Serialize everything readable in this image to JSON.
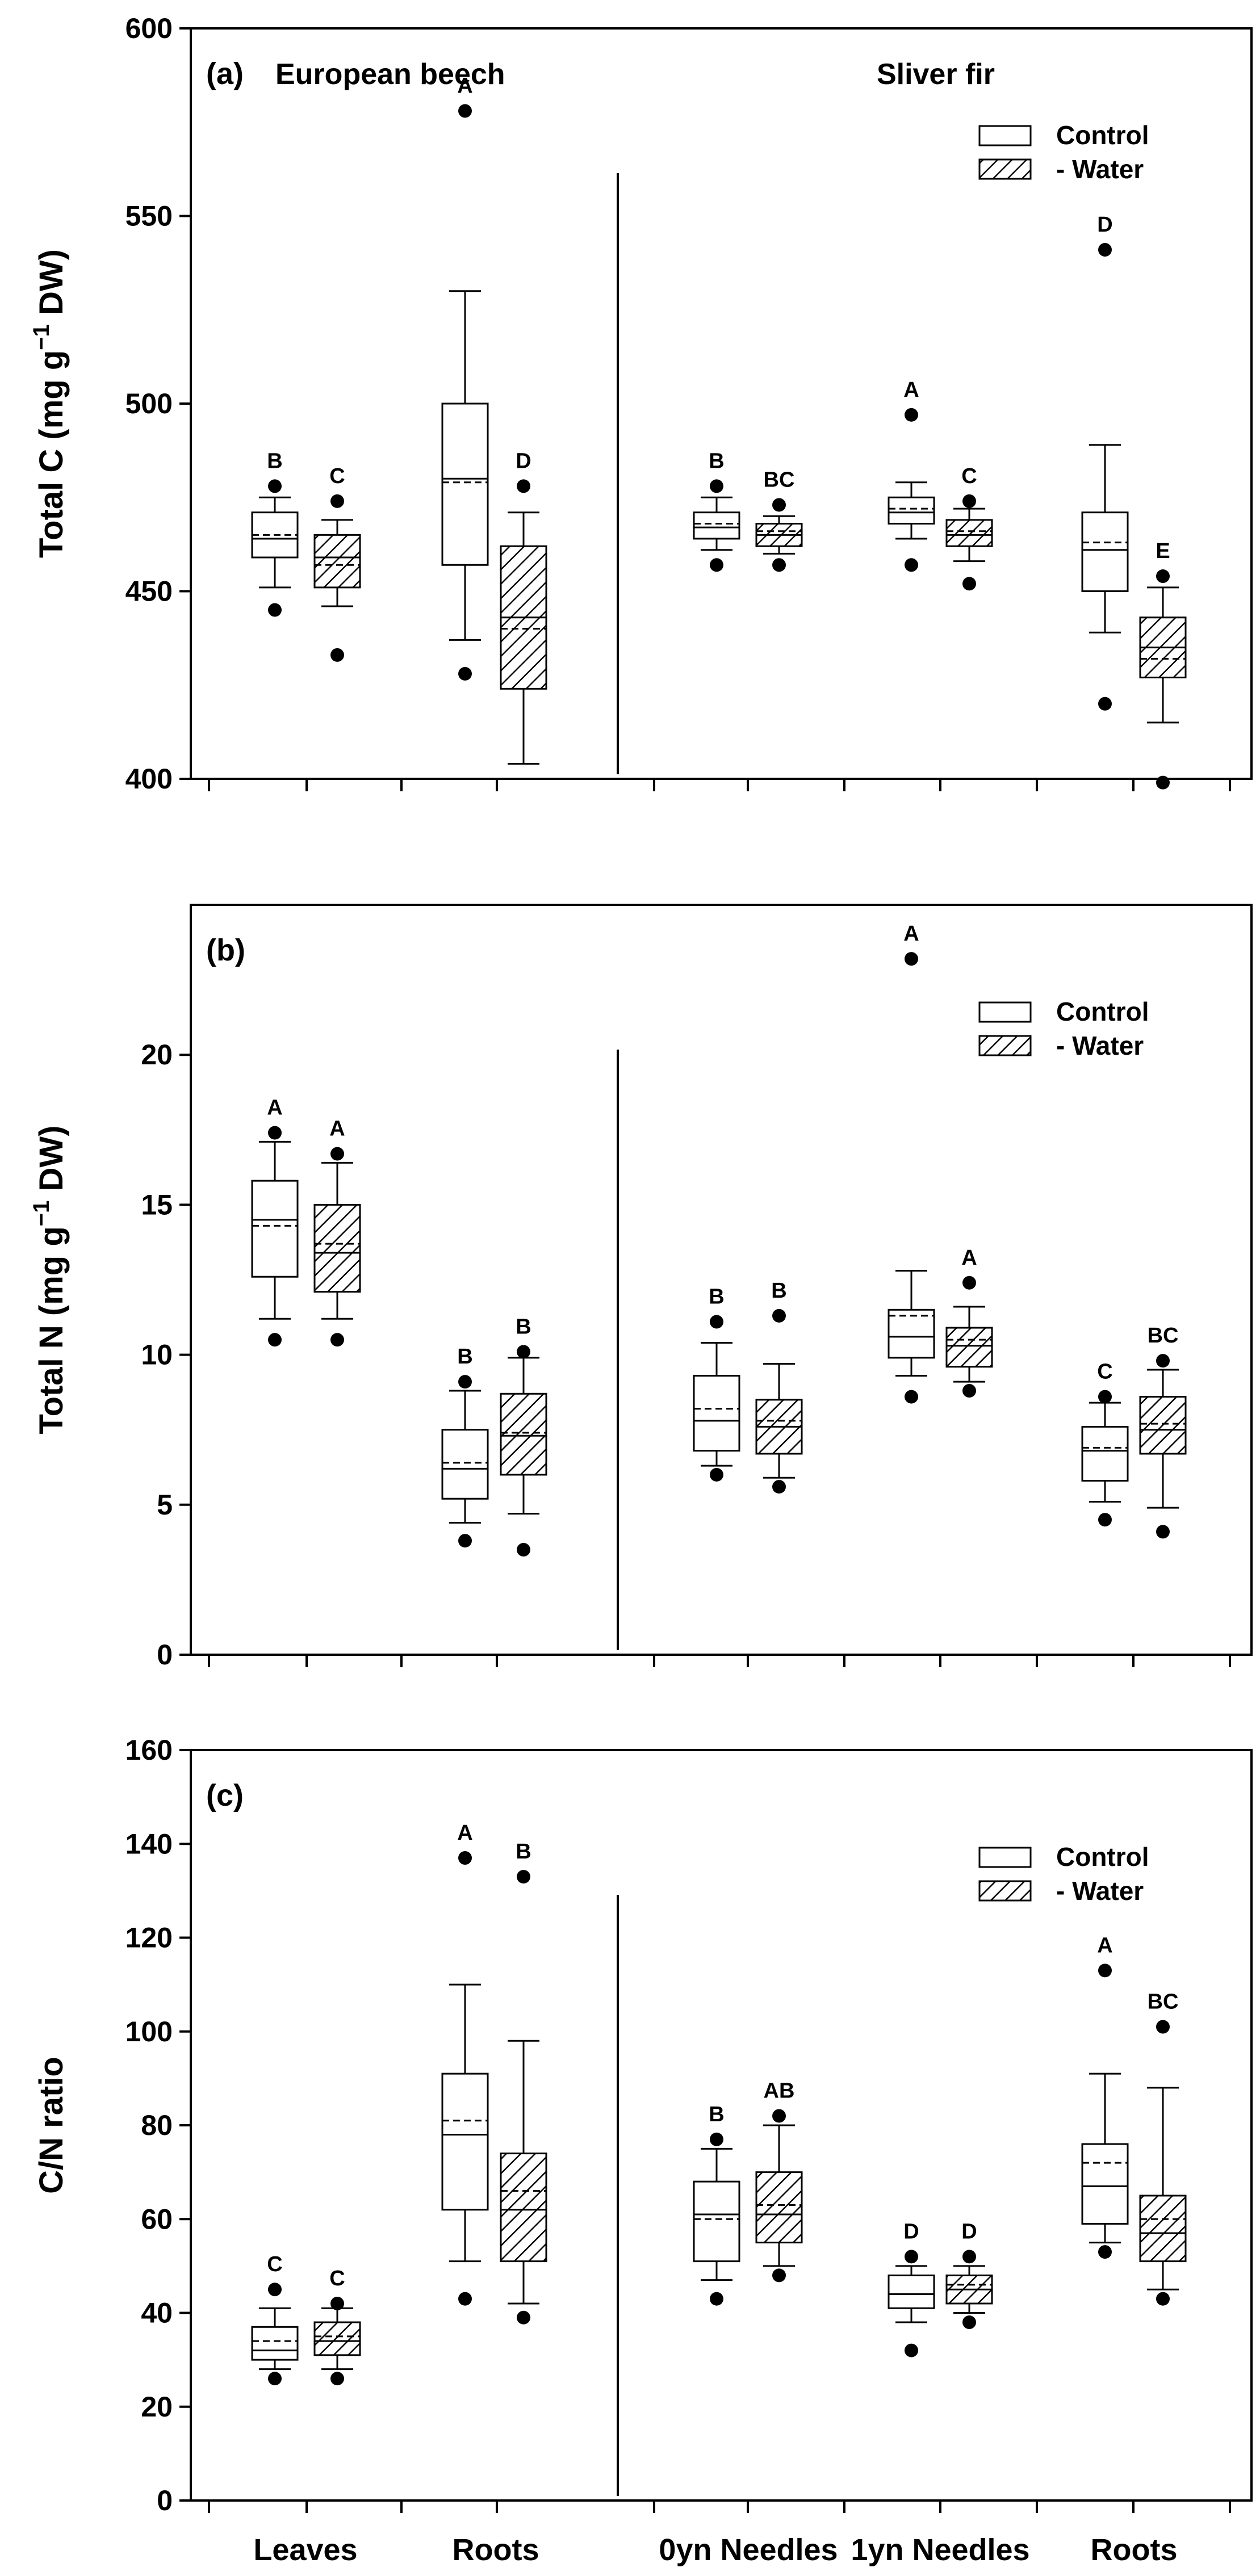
{
  "chart_data": [
    {
      "type": "boxplot",
      "panel_label": "(a)",
      "species_left": "European beech",
      "species_right": "Sliver fir",
      "ylabel": "Total C (mg g-1 DW)",
      "ylabel_parts": {
        "main": "Total C (mg g",
        "exp": "−1",
        "tail": " DW)"
      },
      "ylim": [
        400,
        600
      ],
      "yticks": [
        400,
        450,
        500,
        550,
        600
      ],
      "legend": {
        "control": "Control",
        "water": "- Water"
      },
      "boxes": [
        {
          "group": "Leaves",
          "treatment": "Control",
          "whisker_low": 451,
          "q1": 459,
          "median": 464,
          "mean": 465,
          "q3": 471,
          "whisker_high": 475,
          "outliers": [
            445,
            478
          ],
          "letter": "B"
        },
        {
          "group": "Leaves",
          "treatment": "- Water",
          "whisker_low": 446,
          "q1": 451,
          "median": 459,
          "mean": 457,
          "q3": 465,
          "whisker_high": 469,
          "outliers": [
            433,
            474
          ],
          "letter": "C"
        },
        {
          "group": "Roots",
          "treatment": "Control",
          "whisker_low": 437,
          "q1": 457,
          "median": 480,
          "mean": 479,
          "q3": 500,
          "whisker_high": 530,
          "outliers": [
            428,
            578
          ],
          "letter": "A"
        },
        {
          "group": "Roots",
          "treatment": "- Water",
          "whisker_low": 404,
          "q1": 424,
          "median": 443,
          "mean": 440,
          "q3": 462,
          "whisker_high": 471,
          "outliers": [
            478
          ],
          "letter": "D"
        },
        {
          "group": "0yn Needles",
          "treatment": "Control",
          "whisker_low": 461,
          "q1": 464,
          "median": 467,
          "mean": 468,
          "q3": 471,
          "whisker_high": 475,
          "outliers": [
            457,
            478
          ],
          "letter": "B"
        },
        {
          "group": "0yn Needles",
          "treatment": "- Water",
          "whisker_low": 460,
          "q1": 462,
          "median": 465,
          "mean": 466,
          "q3": 468,
          "whisker_high": 470,
          "outliers": [
            457,
            473
          ],
          "letter": "BC"
        },
        {
          "group": "1yn Needles",
          "treatment": "Control",
          "whisker_low": 464,
          "q1": 468,
          "median": 471,
          "mean": 472,
          "q3": 475,
          "whisker_high": 479,
          "outliers": [
            457,
            497
          ],
          "letter": "A"
        },
        {
          "group": "1yn Needles",
          "treatment": "- Water",
          "whisker_low": 458,
          "q1": 462,
          "median": 465,
          "mean": 466,
          "q3": 469,
          "whisker_high": 472,
          "outliers": [
            452,
            474
          ],
          "letter": "C"
        },
        {
          "group": "Roots",
          "treatment": "Control",
          "whisker_low": 439,
          "q1": 450,
          "median": 461,
          "mean": 463,
          "q3": 471,
          "whisker_high": 489,
          "outliers": [
            420,
            541
          ],
          "letter": "D"
        },
        {
          "group": "Roots",
          "treatment": "- Water",
          "whisker_low": 415,
          "q1": 427,
          "median": 435,
          "mean": 432,
          "q3": 443,
          "whisker_high": 451,
          "outliers": [
            399,
            454
          ],
          "letter": "E"
        }
      ]
    },
    {
      "type": "boxplot",
      "panel_label": "(b)",
      "ylabel": "Total N (mg g-1 DW)",
      "ylabel_parts": {
        "main": "Total N (mg g",
        "exp": "−1",
        "tail": " DW)"
      },
      "ylim": [
        0,
        25
      ],
      "yticks": [
        0,
        5,
        10,
        15,
        20
      ],
      "legend": {
        "control": "Control",
        "water": "- Water"
      },
      "boxes": [
        {
          "group": "Leaves",
          "treatment": "Control",
          "whisker_low": 11.2,
          "q1": 12.6,
          "median": 14.5,
          "mean": 14.3,
          "q3": 15.8,
          "whisker_high": 17.1,
          "outliers": [
            10.5,
            17.4
          ],
          "letter": "A"
        },
        {
          "group": "Leaves",
          "treatment": "- Water",
          "whisker_low": 11.2,
          "q1": 12.1,
          "median": 13.4,
          "mean": 13.7,
          "q3": 15.0,
          "whisker_high": 16.4,
          "outliers": [
            10.5,
            16.7
          ],
          "letter": "A"
        },
        {
          "group": "Roots",
          "treatment": "Control",
          "whisker_low": 4.4,
          "q1": 5.2,
          "median": 6.2,
          "mean": 6.4,
          "q3": 7.5,
          "whisker_high": 8.8,
          "outliers": [
            3.8,
            9.1
          ],
          "letter": "B"
        },
        {
          "group": "Roots",
          "treatment": "- Water",
          "whisker_low": 4.7,
          "q1": 6.0,
          "median": 7.3,
          "mean": 7.4,
          "q3": 8.7,
          "whisker_high": 9.9,
          "outliers": [
            3.5,
            10.1
          ],
          "letter": "B"
        },
        {
          "group": "0yn Needles",
          "treatment": "Control",
          "whisker_low": 6.3,
          "q1": 6.8,
          "median": 7.8,
          "mean": 8.2,
          "q3": 9.3,
          "whisker_high": 10.4,
          "outliers": [
            6.0,
            11.1
          ],
          "letter": "B"
        },
        {
          "group": "0yn Needles",
          "treatment": "- Water",
          "whisker_low": 5.9,
          "q1": 6.7,
          "median": 7.6,
          "mean": 7.8,
          "q3": 8.5,
          "whisker_high": 9.7,
          "outliers": [
            5.6,
            11.3
          ],
          "letter": "B"
        },
        {
          "group": "1yn Needles",
          "treatment": "Control",
          "whisker_low": 9.3,
          "q1": 9.9,
          "median": 10.6,
          "mean": 11.3,
          "q3": 11.5,
          "whisker_high": 12.8,
          "outliers": [
            8.6,
            23.2
          ],
          "letter": "A"
        },
        {
          "group": "1yn Needles",
          "treatment": "- Water",
          "whisker_low": 9.1,
          "q1": 9.6,
          "median": 10.3,
          "mean": 10.5,
          "q3": 10.9,
          "whisker_high": 11.6,
          "outliers": [
            8.8,
            12.4
          ],
          "letter": "A"
        },
        {
          "group": "Roots",
          "treatment": "Control",
          "whisker_low": 5.1,
          "q1": 5.8,
          "median": 6.8,
          "mean": 6.9,
          "q3": 7.6,
          "whisker_high": 8.4,
          "outliers": [
            4.5,
            8.6
          ],
          "letter": "C"
        },
        {
          "group": "Roots",
          "treatment": "- Water",
          "whisker_low": 4.9,
          "q1": 6.7,
          "median": 7.5,
          "mean": 7.7,
          "q3": 8.6,
          "whisker_high": 9.5,
          "outliers": [
            4.1,
            9.8
          ],
          "letter": "BC"
        }
      ]
    },
    {
      "type": "boxplot",
      "panel_label": "(c)",
      "ylabel": "C/N ratio",
      "ylim": [
        0,
        160
      ],
      "yticks": [
        0,
        20,
        40,
        60,
        80,
        100,
        120,
        140,
        160
      ],
      "legend": {
        "control": "Control",
        "water": "- Water"
      },
      "x_categories": [
        "Leaves",
        "Roots",
        "0yn Needles",
        "1yn Needles",
        "Roots"
      ],
      "boxes": [
        {
          "group": "Leaves",
          "treatment": "Control",
          "whisker_low": 28,
          "q1": 30,
          "median": 32,
          "mean": 34,
          "q3": 37,
          "whisker_high": 41,
          "outliers": [
            26,
            45
          ],
          "letter": "C"
        },
        {
          "group": "Leaves",
          "treatment": "- Water",
          "whisker_low": 28,
          "q1": 31,
          "median": 34,
          "mean": 35,
          "q3": 38,
          "whisker_high": 41,
          "outliers": [
            26,
            42
          ],
          "letter": "C"
        },
        {
          "group": "Roots",
          "treatment": "Control",
          "whisker_low": 51,
          "q1": 62,
          "median": 78,
          "mean": 81,
          "q3": 91,
          "whisker_high": 110,
          "outliers": [
            43,
            137
          ],
          "letter": "A"
        },
        {
          "group": "Roots",
          "treatment": "- Water",
          "whisker_low": 42,
          "q1": 51,
          "median": 62,
          "mean": 66,
          "q3": 74,
          "whisker_high": 98,
          "outliers": [
            39,
            133
          ],
          "letter": "B"
        },
        {
          "group": "0yn Needles",
          "treatment": "Control",
          "whisker_low": 47,
          "q1": 51,
          "median": 61,
          "mean": 60,
          "q3": 68,
          "whisker_high": 75,
          "outliers": [
            43,
            77
          ],
          "letter": "B"
        },
        {
          "group": "0yn Needles",
          "treatment": "- Water",
          "whisker_low": 50,
          "q1": 55,
          "median": 61,
          "mean": 63,
          "q3": 70,
          "whisker_high": 80,
          "outliers": [
            48,
            82
          ],
          "letter": "AB"
        },
        {
          "group": "1yn Needles",
          "treatment": "Control",
          "whisker_low": 38,
          "q1": 41,
          "median": 44,
          "mean": 44,
          "q3": 48,
          "whisker_high": 50,
          "outliers": [
            32,
            52
          ],
          "letter": "D"
        },
        {
          "group": "1yn Needles",
          "treatment": "- Water",
          "whisker_low": 40,
          "q1": 42,
          "median": 45,
          "mean": 46,
          "q3": 48,
          "whisker_high": 50,
          "outliers": [
            38,
            52
          ],
          "letter": "D"
        },
        {
          "group": "Roots",
          "treatment": "Control",
          "whisker_low": 55,
          "q1": 59,
          "median": 67,
          "mean": 72,
          "q3": 76,
          "whisker_high": 91,
          "outliers": [
            53,
            113
          ],
          "letter": "A"
        },
        {
          "group": "Roots",
          "treatment": "- Water",
          "whisker_low": 45,
          "q1": 51,
          "median": 57,
          "mean": 60,
          "q3": 65,
          "whisker_high": 88,
          "outliers": [
            43,
            101
          ],
          "letter": "BC"
        }
      ]
    }
  ]
}
